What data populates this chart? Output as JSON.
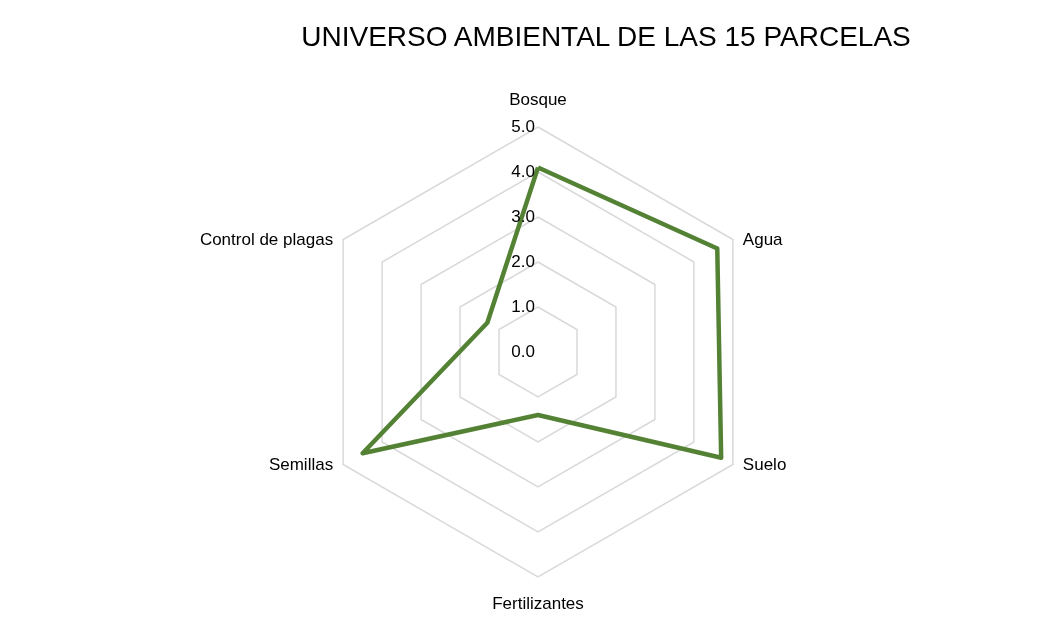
{
  "chart_data": {
    "type": "radar",
    "title": "UNIVERSO AMBIENTAL DE LAS 15 PARCELAS",
    "categories": [
      "Bosque",
      "Agua",
      "Suelo",
      "Fertilizantes",
      "Semillas",
      "Control de plagas"
    ],
    "series": [
      {
        "color": "#548235",
        "values": [
          4.1,
          4.6,
          4.7,
          1.4,
          4.5,
          1.3
        ]
      }
    ],
    "ylim": [
      0,
      5
    ],
    "yticks": [
      {
        "value": 0,
        "label": "0.0"
      },
      {
        "value": 1,
        "label": "1.0"
      },
      {
        "value": 2,
        "label": "2.0"
      },
      {
        "value": 3,
        "label": "3.0"
      },
      {
        "value": 4,
        "label": "4.0"
      },
      {
        "value": 5,
        "label": "5.0"
      }
    ],
    "grid": true
  }
}
